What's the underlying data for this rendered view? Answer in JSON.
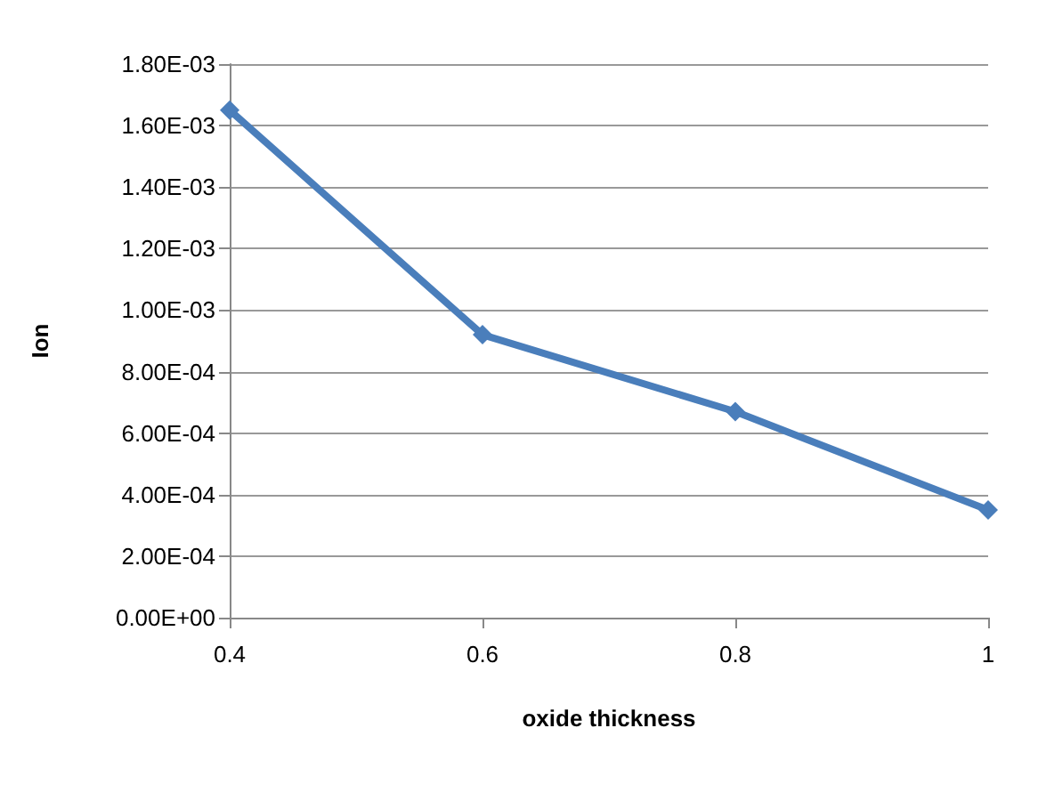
{
  "chart_data": {
    "type": "line",
    "xlabel": "oxide thickness",
    "ylabel": "Ion",
    "x": [
      0.4,
      0.6,
      0.8,
      1
    ],
    "series": [
      {
        "color": "#4a7ebb",
        "values": [
          0.00165,
          0.00092,
          0.00067,
          0.00035
        ]
      }
    ],
    "xlim": [
      0.4,
      1
    ],
    "xticks": [
      0.4,
      0.6,
      0.8,
      1
    ],
    "ylim": [
      0,
      0.0018
    ],
    "yticks": [
      {
        "value": 0,
        "label": "0.00E+00"
      },
      {
        "value": 0.0002,
        "label": "2.00E-04"
      },
      {
        "value": 0.0004,
        "label": "4.00E-04"
      },
      {
        "value": 0.0006,
        "label": "6.00E-04"
      },
      {
        "value": 0.0008,
        "label": "8.00E-04"
      },
      {
        "value": 0.001,
        "label": "1.00E-03"
      },
      {
        "value": 0.0012,
        "label": "1.20E-03"
      },
      {
        "value": 0.0014,
        "label": "1.40E-03"
      },
      {
        "value": 0.0016,
        "label": "1.60E-03"
      },
      {
        "value": 0.0018,
        "label": "1.80E-03"
      }
    ],
    "grid": "y",
    "marker": "diamond",
    "line_style": "solid"
  }
}
